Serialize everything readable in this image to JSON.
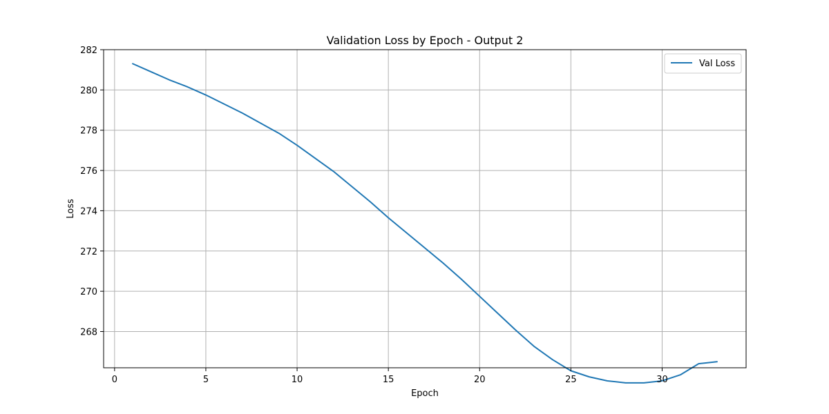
{
  "chart_data": {
    "type": "line",
    "title": "Validation Loss by Epoch - Output 2",
    "xlabel": "Epoch",
    "ylabel": "Loss",
    "xlim": [
      -0.6,
      34.6
    ],
    "ylim": [
      266.2,
      282.0
    ],
    "xticks": [
      0,
      5,
      10,
      15,
      20,
      25,
      30
    ],
    "yticks": [
      268,
      270,
      272,
      274,
      276,
      278,
      280,
      282
    ],
    "grid": true,
    "legend_position": "top-right",
    "series": [
      {
        "name": "Val Loss",
        "color": "#1f77b4",
        "x": [
          1,
          2,
          3,
          4,
          5,
          6,
          7,
          8,
          9,
          10,
          11,
          12,
          13,
          14,
          15,
          16,
          17,
          18,
          19,
          20,
          21,
          22,
          23,
          24,
          25,
          26,
          27,
          28,
          29,
          30,
          31,
          32,
          33
        ],
        "y": [
          281.3,
          280.9,
          280.5,
          280.15,
          279.75,
          279.3,
          278.85,
          278.35,
          277.85,
          277.25,
          276.6,
          275.95,
          275.2,
          274.45,
          273.65,
          272.9,
          272.15,
          271.4,
          270.6,
          269.75,
          268.9,
          268.05,
          267.25,
          266.6,
          266.05,
          265.75,
          265.55,
          265.45,
          265.45,
          265.55,
          265.85,
          266.4,
          266.5
        ]
      }
    ]
  }
}
